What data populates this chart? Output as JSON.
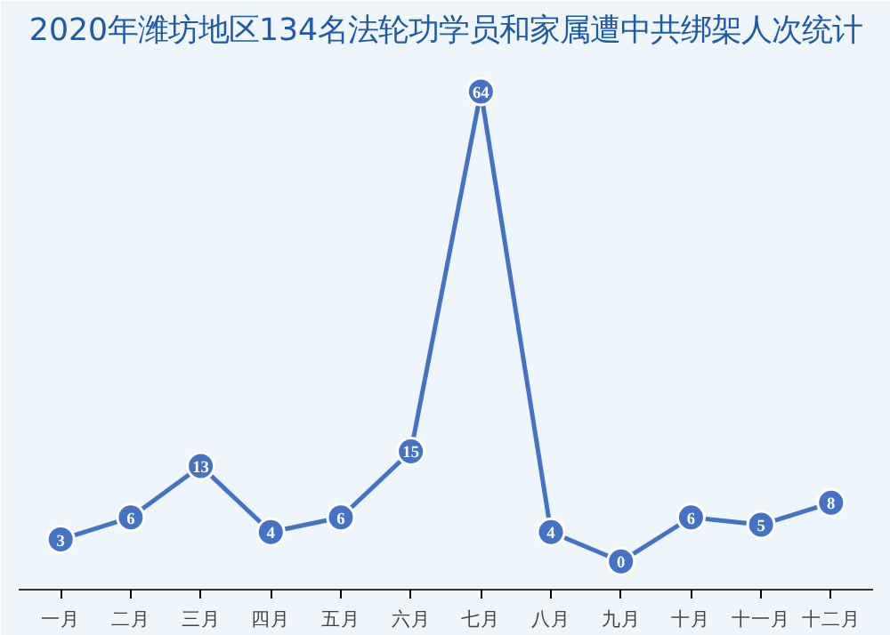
{
  "chart_data": {
    "type": "line",
    "title": "2020年潍坊地区134名法轮功学员和家属遭中共绑架人次统计",
    "categories": [
      "一月",
      "二月",
      "三月",
      "四月",
      "五月",
      "六月",
      "七月",
      "八月",
      "九月",
      "十月",
      "十一月",
      "十二月"
    ],
    "values": [
      3,
      6,
      13,
      4,
      6,
      15,
      64,
      4,
      0,
      6,
      5,
      8
    ],
    "color": "#4472c4",
    "marker": "circle",
    "data_labels": true,
    "grid": false,
    "line_style": "solid"
  }
}
